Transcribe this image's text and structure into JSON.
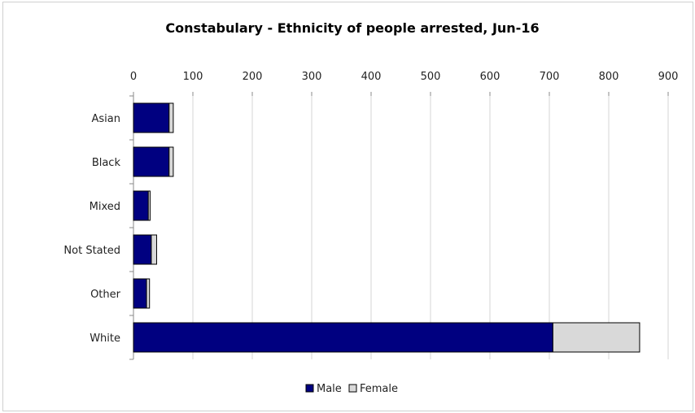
{
  "chart_data": {
    "type": "bar",
    "orientation": "horizontal",
    "stacked": true,
    "title": "Constabulary - Ethnicity of people arrested, Jun-16",
    "xlabel": "",
    "ylabel": "",
    "categories": [
      "Asian",
      "Black",
      "Mixed",
      "Not Stated",
      "Other",
      "White"
    ],
    "series": [
      {
        "name": "Male",
        "values": [
          60,
          60,
          25,
          30,
          22,
          706
        ],
        "color": "#000080"
      },
      {
        "name": "Female",
        "values": [
          7,
          7,
          3,
          9,
          5,
          146
        ],
        "color": "#d9d9d9"
      }
    ],
    "xlim": [
      0,
      900
    ],
    "xticks": [
      "0",
      "100",
      "200",
      "300",
      "400",
      "500",
      "600",
      "700",
      "800",
      "900"
    ],
    "x_axis_position": "top",
    "grid": true,
    "legend": "bottom-center"
  }
}
